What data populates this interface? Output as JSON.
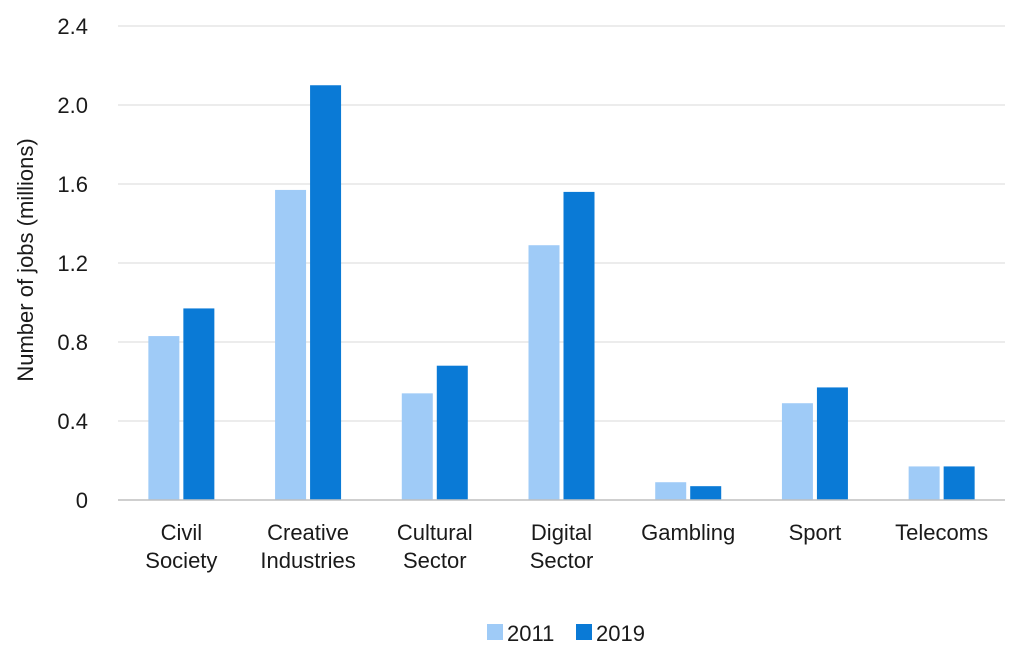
{
  "chart_data": {
    "type": "bar",
    "title": "",
    "xlabel": "",
    "ylabel": "Number of jobs (millions)",
    "ylim": [
      0,
      2.4
    ],
    "yticks": [
      0,
      0.4,
      0.8,
      1.2,
      1.6,
      2.0,
      2.4
    ],
    "ytick_labels": [
      "0",
      "0.4",
      "0.8",
      "1.2",
      "1.6",
      "2.0",
      "2.4"
    ],
    "grid": true,
    "legend_position": "bottom-center",
    "categories": [
      [
        "Civil",
        "Society"
      ],
      [
        "Creative",
        "Industries"
      ],
      [
        "Cultural",
        "Sector"
      ],
      [
        "Digital",
        "Sector"
      ],
      [
        "Gambling"
      ],
      [
        "Sport"
      ],
      [
        "Telecoms"
      ]
    ],
    "series": [
      {
        "name": "2011",
        "color": "#9fcbf7",
        "values": [
          0.83,
          1.57,
          0.54,
          1.29,
          0.09,
          0.49,
          0.17
        ]
      },
      {
        "name": "2019",
        "color": "#0a7ad6",
        "values": [
          0.97,
          2.1,
          0.68,
          1.56,
          0.07,
          0.57,
          0.17
        ]
      }
    ]
  }
}
